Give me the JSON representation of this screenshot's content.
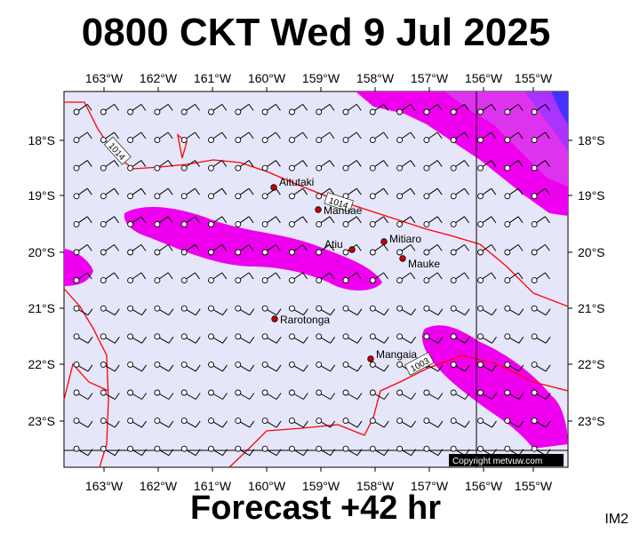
{
  "title": "0800 CKT Wed 9 Jul 2025",
  "footer": "Forecast +42 hr",
  "code": "IM2",
  "copyright": "Copyright metvuw.com",
  "lon_labels": [
    "163°W",
    "162°W",
    "161°W",
    "160°W",
    "159°W",
    "158°W",
    "157°W",
    "156°W",
    "155°W"
  ],
  "lat_labels": [
    "18°S",
    "19°S",
    "20°S",
    "21°S",
    "22°S",
    "23°S"
  ],
  "places": [
    {
      "name": "Aitutaki",
      "lon": -159.79,
      "lat": -18.86
    },
    {
      "name": "Manuae",
      "lon": -158.96,
      "lat": -19.26
    },
    {
      "name": "Atiu",
      "lon": -158.12,
      "lat": -19.99
    },
    {
      "name": "Mitiaro",
      "lon": -157.7,
      "lat": -19.87
    },
    {
      "name": "Mauke",
      "lon": -157.35,
      "lat": -20.15
    },
    {
      "name": "Rarotonga",
      "lon": -159.78,
      "lat": -21.23
    },
    {
      "name": "Mangaia",
      "lon": -157.93,
      "lat": -21.93
    }
  ],
  "isobars": [
    {
      "label": "1014",
      "label_lon": -163.0,
      "label_lat": -18.15
    },
    {
      "label": "1014",
      "label_lon": -158.7,
      "label_lat": -19.15
    },
    {
      "label": "1003",
      "label_lon": -157.0,
      "label_lat": -22.0
    }
  ],
  "colors": {
    "ocean": "#e6e6fa",
    "wind_light": "#ee00ee",
    "wind_mid": "#cc44ff",
    "wind_strong": "#5533ff",
    "isobar": "#ff0000"
  }
}
